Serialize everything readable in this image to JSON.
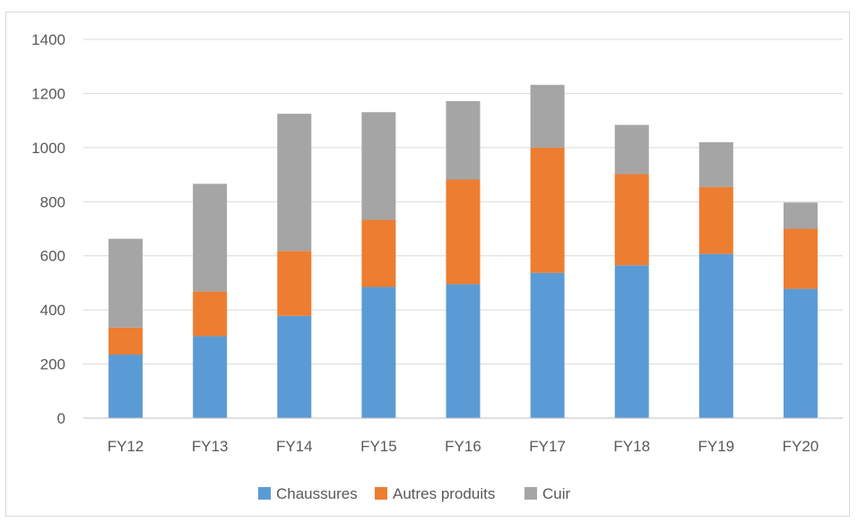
{
  "chart_data": {
    "type": "bar",
    "stacked": true,
    "categories": [
      "FY12",
      "FY13",
      "FY14",
      "FY15",
      "FY16",
      "FY17",
      "FY18",
      "FY19",
      "FY20"
    ],
    "series": [
      {
        "name": "Chaussures",
        "color": "#5B9BD5",
        "values": [
          235,
          303,
          378,
          485,
          495,
          537,
          565,
          607,
          478
        ]
      },
      {
        "name": "Autres produits",
        "color": "#ED7D31",
        "values": [
          100,
          165,
          240,
          248,
          387,
          463,
          337,
          248,
          222
        ]
      },
      {
        "name": "Cuir",
        "color": "#A5A5A5",
        "values": [
          328,
          398,
          507,
          398,
          290,
          232,
          182,
          165,
          97
        ]
      }
    ],
    "ylim": [
      0,
      1400
    ],
    "yticks": [
      "0",
      "200",
      "400",
      "600",
      "800",
      "1000",
      "1200",
      "1400"
    ],
    "grid": true,
    "legend_position": "bottom"
  }
}
